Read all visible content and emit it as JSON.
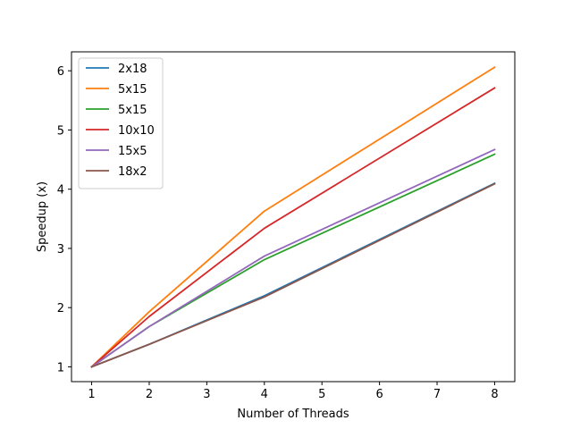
{
  "chart_data": {
    "type": "line",
    "title": "",
    "xlabel": "Number of Threads",
    "ylabel": "Speedup (x)",
    "x": [
      1,
      2,
      4,
      8
    ],
    "xlim": [
      0.65,
      8.35
    ],
    "ylim": [
      0.75,
      6.32
    ],
    "xticks": [
      1,
      2,
      3,
      4,
      5,
      6,
      7,
      8
    ],
    "yticks": [
      1,
      2,
      3,
      4,
      5,
      6
    ],
    "grid": false,
    "legend_position": "top-left",
    "series": [
      {
        "name": "2x18",
        "color": "#1f77b4",
        "values": [
          1.0,
          1.38,
          2.2,
          4.1
        ]
      },
      {
        "name": "5x15",
        "color": "#ff7f0e",
        "values": [
          1.0,
          1.93,
          3.63,
          6.06
        ]
      },
      {
        "name": "5x15",
        "color": "#2ca02c",
        "values": [
          1.0,
          1.68,
          2.81,
          4.59
        ]
      },
      {
        "name": "10x10",
        "color": "#d62728",
        "values": [
          1.0,
          1.85,
          3.34,
          5.71
        ]
      },
      {
        "name": "15x5",
        "color": "#9467bd",
        "values": [
          1.0,
          1.68,
          2.87,
          4.67
        ]
      },
      {
        "name": "18x2",
        "color": "#8c564b",
        "values": [
          1.0,
          1.38,
          2.18,
          4.09
        ]
      }
    ]
  }
}
